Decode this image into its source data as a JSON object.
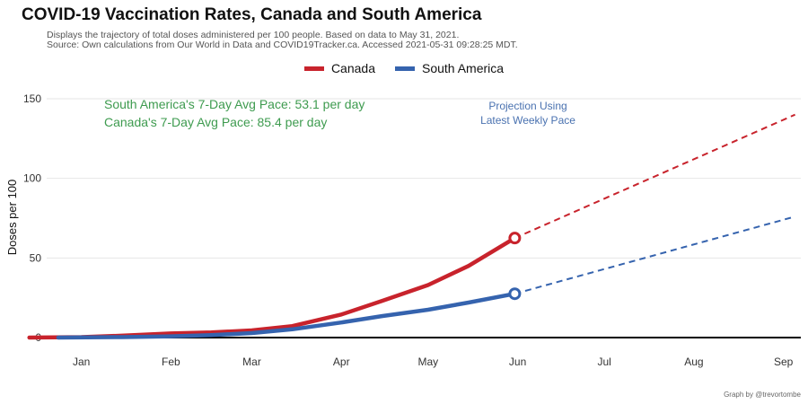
{
  "title": "COVID-19 Vaccination Rates, Canada and South America",
  "subtitle_line1": "Displays the trajectory of total doses administered per 100 people. Based on data to May 31, 2021.",
  "subtitle_line2": "Source: Own calculations from Our World in Data and COVID19Tracker.ca. Accessed 2021-05-31 09:28:25 MDT.",
  "caption": "Graph by @trevortombe",
  "annotations": {
    "pace_south_america": "South America's 7-Day Avg Pace: 53.1 per day",
    "pace_canada": "Canada's 7-Day Avg Pace: 85.4 per day",
    "projection_line1": "Projection Using",
    "projection_line2": "Latest Weekly Pace"
  },
  "colors": {
    "canada": "#c8232c",
    "south_america": "#3563ae",
    "annotation_green": "#3e9b4f",
    "projection_blue": "#4a72b0"
  },
  "chart_data": {
    "type": "line",
    "ylabel": "Doses per 100",
    "xlabel": "",
    "ylim": [
      0,
      150
    ],
    "yticks": [
      0,
      50,
      100,
      150
    ],
    "xlim": [
      "2020-12-20",
      "2021-09-07"
    ],
    "xticks": [
      {
        "date": "2021-01-01",
        "label": "Jan"
      },
      {
        "date": "2021-02-01",
        "label": "Feb"
      },
      {
        "date": "2021-03-01",
        "label": "Mar"
      },
      {
        "date": "2021-04-01",
        "label": "Apr"
      },
      {
        "date": "2021-05-01",
        "label": "May"
      },
      {
        "date": "2021-06-01",
        "label": "Jun"
      },
      {
        "date": "2021-07-01",
        "label": "Jul"
      },
      {
        "date": "2021-08-01",
        "label": "Aug"
      },
      {
        "date": "2021-09-01",
        "label": "Sep"
      }
    ],
    "grid": true,
    "legend_position": "top",
    "series": [
      {
        "name": "Canada",
        "color": "#c8232c",
        "points": [
          [
            "2020-12-14",
            0
          ],
          [
            "2021-01-01",
            0.3
          ],
          [
            "2021-01-15",
            1.2
          ],
          [
            "2021-02-01",
            2.6
          ],
          [
            "2021-02-15",
            3.2
          ],
          [
            "2021-03-01",
            4.5
          ],
          [
            "2021-03-15",
            7.2
          ],
          [
            "2021-04-01",
            14.5
          ],
          [
            "2021-04-15",
            23
          ],
          [
            "2021-05-01",
            33
          ],
          [
            "2021-05-15",
            45
          ],
          [
            "2021-05-31",
            62.5
          ]
        ],
        "projection": [
          [
            "2021-05-31",
            62.5
          ],
          [
            "2021-09-05",
            140
          ]
        ]
      },
      {
        "name": "South America",
        "color": "#3563ae",
        "points": [
          [
            "2020-12-24",
            0
          ],
          [
            "2021-01-15",
            0.3
          ],
          [
            "2021-02-01",
            0.8
          ],
          [
            "2021-02-15",
            1.5
          ],
          [
            "2021-03-01",
            2.8
          ],
          [
            "2021-03-15",
            5.2
          ],
          [
            "2021-04-01",
            9.5
          ],
          [
            "2021-04-15",
            13.5
          ],
          [
            "2021-05-01",
            17.5
          ],
          [
            "2021-05-15",
            22
          ],
          [
            "2021-05-31",
            27.5
          ]
        ],
        "projection": [
          [
            "2021-05-31",
            27.5
          ],
          [
            "2021-09-05",
            76
          ]
        ]
      }
    ]
  }
}
